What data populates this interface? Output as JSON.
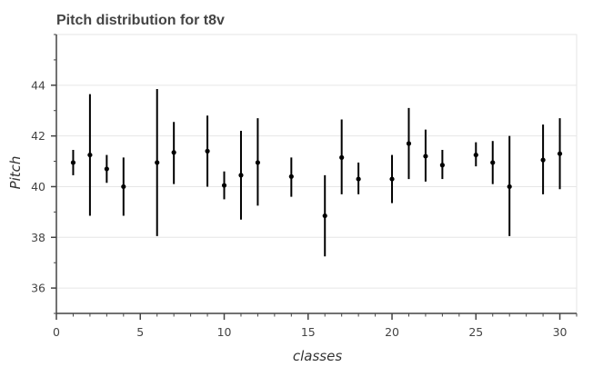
{
  "chart_data": {
    "type": "scatter",
    "title": "Pitch distribution for t8v",
    "xlabel": "classes",
    "ylabel": "Pitch",
    "xlim": [
      0,
      31
    ],
    "ylim": [
      35,
      46
    ],
    "x_ticks": [
      "0",
      "5",
      "10",
      "15",
      "20",
      "25",
      "30"
    ],
    "y_ticks": [
      "36",
      "38",
      "40",
      "42",
      "44"
    ],
    "grid": true,
    "legend": "none",
    "colors": {
      "marks": "#000000",
      "grid": "#e6e6e6",
      "axis": "#444444",
      "title": "#444444"
    },
    "series": [
      {
        "points": [
          {
            "x": 1,
            "y": 40.95,
            "low": 40.45,
            "high": 41.45
          },
          {
            "x": 2,
            "y": 41.25,
            "low": 38.85,
            "high": 43.65
          },
          {
            "x": 3,
            "y": 40.7,
            "low": 40.15,
            "high": 41.25
          },
          {
            "x": 4,
            "y": 40.0,
            "low": 38.85,
            "high": 41.15
          },
          {
            "x": 6,
            "y": 40.95,
            "low": 38.05,
            "high": 43.85
          },
          {
            "x": 7,
            "y": 41.35,
            "low": 40.1,
            "high": 42.55
          },
          {
            "x": 9,
            "y": 41.4,
            "low": 40.0,
            "high": 42.8
          },
          {
            "x": 10,
            "y": 40.05,
            "low": 39.5,
            "high": 40.6
          },
          {
            "x": 11,
            "y": 40.45,
            "low": 38.7,
            "high": 42.2
          },
          {
            "x": 12,
            "y": 40.95,
            "low": 39.25,
            "high": 42.7
          },
          {
            "x": 14,
            "y": 40.4,
            "low": 39.6,
            "high": 41.15
          },
          {
            "x": 16,
            "y": 38.85,
            "low": 37.25,
            "high": 40.45
          },
          {
            "x": 17,
            "y": 41.15,
            "low": 39.7,
            "high": 42.65
          },
          {
            "x": 18,
            "y": 40.3,
            "low": 39.7,
            "high": 40.95
          },
          {
            "x": 20,
            "y": 40.3,
            "low": 39.35,
            "high": 41.25
          },
          {
            "x": 21,
            "y": 41.7,
            "low": 40.3,
            "high": 43.1
          },
          {
            "x": 22,
            "y": 41.2,
            "low": 40.2,
            "high": 42.25
          },
          {
            "x": 23,
            "y": 40.85,
            "low": 40.3,
            "high": 41.45
          },
          {
            "x": 25,
            "y": 41.25,
            "low": 40.8,
            "high": 41.75
          },
          {
            "x": 26,
            "y": 40.95,
            "low": 40.1,
            "high": 41.8
          },
          {
            "x": 27,
            "y": 40.0,
            "low": 38.05,
            "high": 42.0
          },
          {
            "x": 29,
            "y": 41.05,
            "low": 39.7,
            "high": 42.45
          },
          {
            "x": 30,
            "y": 41.3,
            "low": 39.9,
            "high": 42.7
          }
        ]
      }
    ]
  }
}
